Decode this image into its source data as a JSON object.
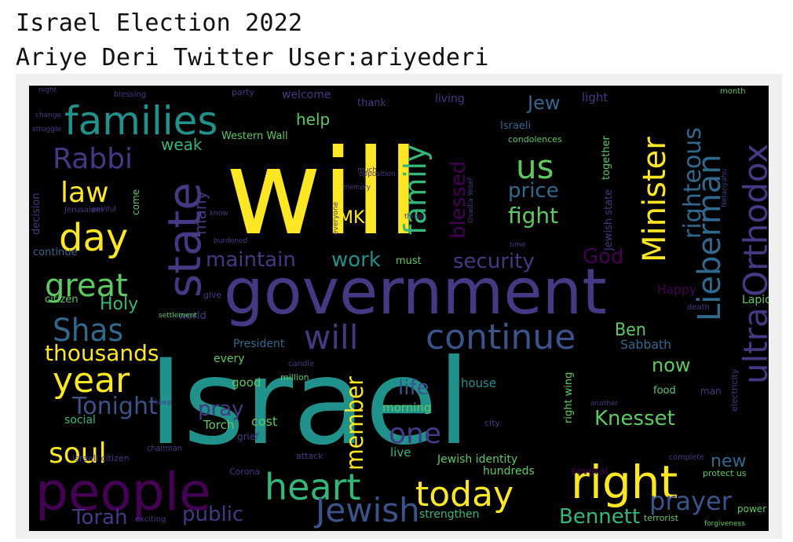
{
  "header": {
    "line1": "Israel Election 2022",
    "line2": "Ariye Deri Twitter User:ariyederi"
  },
  "wordcloud": {
    "palette": {
      "yellow": "#fde725",
      "lime": "#b5de2b",
      "green": "#5ec962",
      "seagreen": "#35b779",
      "teal": "#21918c",
      "blue": "#31688e",
      "indigo": "#3b528b",
      "purple": "#443983",
      "darkpurple": "#440154"
    },
    "words": [
      {
        "text": "will",
        "color": "yellow"
      },
      {
        "text": "Israel",
        "color": "teal"
      },
      {
        "text": "government",
        "color": "purple"
      },
      {
        "text": "people",
        "color": "darkpurple"
      },
      {
        "text": "families",
        "color": "teal"
      },
      {
        "text": "state",
        "color": "purple"
      },
      {
        "text": "right",
        "color": "yellow"
      },
      {
        "text": "heart",
        "color": "seagreen"
      },
      {
        "text": "ultra Orthodox",
        "color": "purple"
      },
      {
        "text": "Minister",
        "color": "yellow"
      },
      {
        "text": "Lieberman",
        "color": "blue"
      },
      {
        "text": "continue",
        "color": "indigo"
      },
      {
        "text": "will",
        "color": "purple"
      },
      {
        "text": "Jewish",
        "color": "indigo"
      },
      {
        "text": "today",
        "color": "yellow"
      },
      {
        "text": "year",
        "color": "yellow"
      },
      {
        "text": "day",
        "color": "yellow"
      },
      {
        "text": "great",
        "color": "green"
      },
      {
        "text": "Shas",
        "color": "blue"
      },
      {
        "text": "soul",
        "color": "yellow"
      },
      {
        "text": "Rabbi",
        "color": "purple"
      },
      {
        "text": "law",
        "color": "yellow"
      },
      {
        "text": "us",
        "color": "green"
      },
      {
        "text": "family",
        "color": "seagreen"
      },
      {
        "text": "prayer",
        "color": "indigo"
      },
      {
        "text": "one",
        "color": "purple"
      },
      {
        "text": "Tonight",
        "color": "indigo"
      },
      {
        "text": "thousands",
        "color": "yellow"
      },
      {
        "text": "Knesset",
        "color": "green"
      },
      {
        "text": "Torah",
        "color": "purple"
      },
      {
        "text": "public",
        "color": "purple"
      },
      {
        "text": "Bennett",
        "color": "seagreen"
      },
      {
        "text": "security",
        "color": "purple"
      },
      {
        "text": "maintain",
        "color": "purple"
      },
      {
        "text": "work",
        "color": "teal"
      },
      {
        "text": "fight",
        "color": "green"
      },
      {
        "text": "price",
        "color": "blue"
      },
      {
        "text": "member",
        "color": "yellow"
      },
      {
        "text": "life",
        "color": "indigo"
      },
      {
        "text": "pray",
        "color": "purple"
      },
      {
        "text": "blessed",
        "color": "darkpurple"
      },
      {
        "text": "righteous",
        "color": "blue"
      },
      {
        "text": "Holy",
        "color": "seagreen"
      },
      {
        "text": "Jew",
        "color": "blue"
      },
      {
        "text": "now",
        "color": "green"
      },
      {
        "text": "Ben",
        "color": "green"
      },
      {
        "text": "God",
        "color": "darkpurple"
      },
      {
        "text": "help",
        "color": "green"
      },
      {
        "text": "weak",
        "color": "seagreen"
      },
      {
        "text": "MK",
        "color": "yellow"
      },
      {
        "text": "many",
        "color": "purple"
      },
      {
        "text": "new",
        "color": "blue"
      },
      {
        "text": "Sabbath",
        "color": "blue"
      },
      {
        "text": "Lapid",
        "color": "green"
      },
      {
        "text": "Happy",
        "color": "darkpurple"
      },
      {
        "text": "Western Wall",
        "color": "green"
      },
      {
        "text": "Israeli",
        "color": "blue"
      },
      {
        "text": "Jewish identity",
        "color": "green"
      },
      {
        "text": "hundreds",
        "color": "green"
      },
      {
        "text": "strengthen",
        "color": "seagreen"
      },
      {
        "text": "several",
        "color": "darkpurple"
      },
      {
        "text": "protect us",
        "color": "green"
      },
      {
        "text": "power",
        "color": "green"
      },
      {
        "text": "terrorist",
        "color": "green"
      },
      {
        "text": "morning",
        "color": "green"
      },
      {
        "text": "house",
        "color": "teal"
      },
      {
        "text": "live",
        "color": "seagreen"
      },
      {
        "text": "cost",
        "color": "green"
      },
      {
        "text": "Torch",
        "color": "green"
      },
      {
        "text": "social",
        "color": "seagreen"
      },
      {
        "text": "good",
        "color": "green"
      },
      {
        "text": "every",
        "color": "green"
      },
      {
        "text": "President",
        "color": "blue"
      },
      {
        "text": "citizen",
        "color": "green"
      },
      {
        "text": "continue",
        "color": "blue"
      },
      {
        "text": "welcome",
        "color": "purple"
      },
      {
        "text": "living",
        "color": "purple"
      },
      {
        "text": "light",
        "color": "purple"
      },
      {
        "text": "thank",
        "color": "purple"
      },
      {
        "text": "must",
        "color": "green"
      },
      {
        "text": "together",
        "color": "green"
      },
      {
        "text": "Jewish state",
        "color": "purple"
      },
      {
        "text": "right wing",
        "color": "green"
      },
      {
        "text": "decision",
        "color": "purple"
      },
      {
        "text": "world",
        "color": "purple"
      },
      {
        "text": "come",
        "color": "green"
      },
      {
        "text": "food",
        "color": "green"
      },
      {
        "text": "man",
        "color": "purple"
      },
      {
        "text": "city",
        "color": "purple"
      },
      {
        "text": "grief",
        "color": "purple"
      },
      {
        "text": "attack",
        "color": "purple"
      },
      {
        "text": "Corona",
        "color": "purple"
      },
      {
        "text": "million",
        "color": "green"
      },
      {
        "text": "candle",
        "color": "purple"
      },
      {
        "text": "give",
        "color": "purple"
      },
      {
        "text": "month",
        "color": "green"
      },
      {
        "text": "party",
        "color": "purple"
      },
      {
        "text": "blessing",
        "color": "purple"
      },
      {
        "text": "condolences",
        "color": "green"
      },
      {
        "text": "electricity",
        "color": "purple"
      },
      {
        "text": "chairman",
        "color": "purple"
      },
      {
        "text": "Israeli citizen",
        "color": "purple"
      },
      {
        "text": "exciting",
        "color": "purple"
      },
      {
        "text": "death",
        "color": "purple"
      },
      {
        "text": "complete",
        "color": "purple"
      },
      {
        "text": "forgiveness",
        "color": "green"
      },
      {
        "text": "settlement",
        "color": "green"
      },
      {
        "text": "change",
        "color": "purple"
      },
      {
        "text": "Jerusalem",
        "color": "purple"
      },
      {
        "text": "struggle",
        "color": "purple"
      },
      {
        "text": "painful",
        "color": "purple"
      },
      {
        "text": "another",
        "color": "purple"
      },
      {
        "text": "keep",
        "color": "purple"
      },
      {
        "text": "thing",
        "color": "purple"
      },
      {
        "text": "memory",
        "color": "purple"
      },
      {
        "text": "everyone",
        "color": "purple"
      },
      {
        "text": "opposition",
        "color": "purple"
      },
      {
        "text": "Ovadia Yosef",
        "color": "purple"
      },
      {
        "text": "time",
        "color": "purple"
      },
      {
        "text": "know",
        "color": "purple"
      },
      {
        "text": "burdened",
        "color": "purple"
      },
      {
        "text": "Netanyahu",
        "color": "purple"
      },
      {
        "text": "night",
        "color": "purple"
      },
      {
        "text": "much",
        "color": "purple"
      }
    ]
  }
}
